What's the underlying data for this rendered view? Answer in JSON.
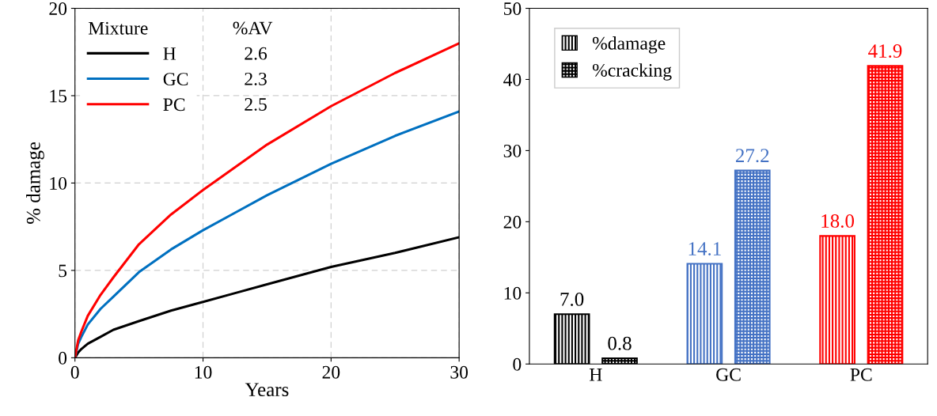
{
  "chart_data": [
    {
      "type": "line",
      "xlabel": "Years",
      "ylabel": "% damage",
      "xlim": [
        0,
        30
      ],
      "xticks": [
        0,
        10,
        20,
        30
      ],
      "ylim": [
        0,
        20
      ],
      "yticks": [
        0,
        5,
        10,
        15,
        20
      ],
      "grid": true,
      "legend": "top left",
      "legend_title": "Mixture",
      "annotations": [
        "%AV",
        "2.6",
        "2.3",
        "2.5"
      ],
      "marker": "none",
      "line_style": "solid",
      "x": [
        0,
        0.25,
        0.5,
        1,
        2,
        3,
        5,
        7.5,
        10,
        12.5,
        15,
        20,
        25,
        30
      ],
      "series": [
        {
          "name": "H",
          "color": "#000000",
          "values": [
            0,
            0.3,
            0.5,
            0.8,
            1.2,
            1.6,
            2.1,
            2.7,
            3.2,
            3.7,
            4.2,
            5.2,
            6.0,
            6.9
          ]
        },
        {
          "name": "GC",
          "color": "#0070c0",
          "values": [
            0,
            0.8,
            1.2,
            1.9,
            2.8,
            3.5,
            4.9,
            6.2,
            7.3,
            8.3,
            9.3,
            11.1,
            12.7,
            14.1
          ]
        },
        {
          "name": "PC",
          "color": "#ff0000",
          "values": [
            0,
            1.0,
            1.5,
            2.4,
            3.6,
            4.6,
            6.5,
            8.2,
            9.6,
            10.9,
            12.2,
            14.4,
            16.3,
            18.0
          ]
        }
      ]
    },
    {
      "type": "bar",
      "categories": [
        "H",
        "GC",
        "PC"
      ],
      "ylim": [
        0,
        50
      ],
      "yticks": [
        0,
        10,
        20,
        30,
        40,
        50
      ],
      "grid": false,
      "legend": "top left",
      "series": [
        {
          "name": "%damage",
          "color": "#000000",
          "colors": [
            "#000000",
            "#4472c4",
            "#ff0000"
          ],
          "values": [
            7.0,
            14.1,
            18.0
          ],
          "value_labels": [
            "7.0",
            "14.1",
            "18.0"
          ]
        },
        {
          "name": "%cracking",
          "color": "#000000",
          "colors": [
            "#000000",
            "#4472c4",
            "#ff0000"
          ],
          "values": [
            0.8,
            27.2,
            41.9
          ],
          "value_labels": [
            "0.8",
            "27.2",
            "41.9"
          ]
        }
      ]
    }
  ]
}
